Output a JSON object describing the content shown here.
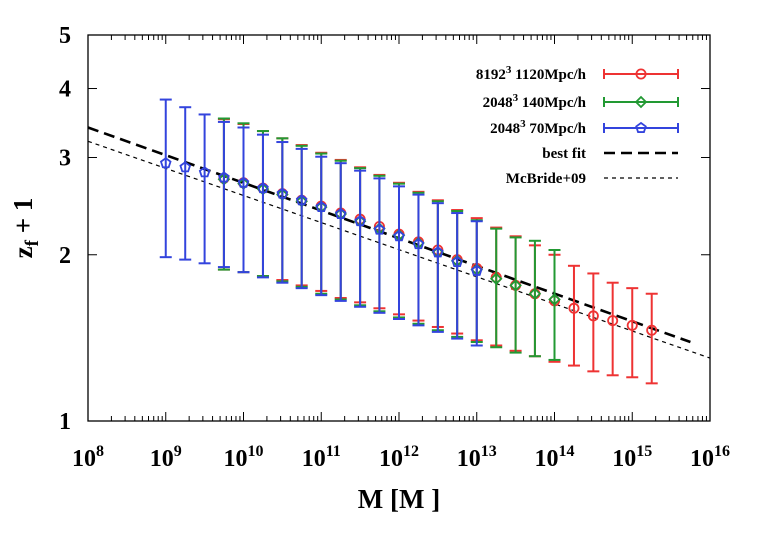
{
  "chart_data": {
    "type": "scatter",
    "xlabel": "M [M ]",
    "ylabel": "z",
    "ylabel_sub": "f",
    "ylabel_suffix": " + 1",
    "x_scale": "log",
    "y_scale": "log",
    "xlim": [
      100000000.0,
      1e+16
    ],
    "ylim": [
      1,
      5
    ],
    "grid": false,
    "legend_position": "top-right",
    "x_ticks": [
      {
        "value": 100000000.0,
        "base": "10",
        "exp": "8"
      },
      {
        "value": 1000000000.0,
        "base": "10",
        "exp": "9"
      },
      {
        "value": 10000000000.0,
        "base": "10",
        "exp": "10"
      },
      {
        "value": 100000000000.0,
        "base": "10",
        "exp": "11"
      },
      {
        "value": 1000000000000.0,
        "base": "10",
        "exp": "12"
      },
      {
        "value": 10000000000000.0,
        "base": "10",
        "exp": "13"
      },
      {
        "value": 100000000000000.0,
        "base": "10",
        "exp": "14"
      },
      {
        "value": 1000000000000000.0,
        "base": "10",
        "exp": "15"
      },
      {
        "value": 1e+16,
        "base": "10",
        "exp": "16"
      }
    ],
    "y_ticks": [
      {
        "value": 1,
        "label": "1"
      },
      {
        "value": 2,
        "label": "2"
      },
      {
        "value": 3,
        "label": "3"
      },
      {
        "value": 4,
        "label": "4"
      },
      {
        "value": 5,
        "label": "5"
      }
    ],
    "series": [
      {
        "name": "8192³ 1120Mpc/h",
        "label_base": "8192",
        "label_exp": "3",
        "label_rest": " 1120Mpc/h",
        "color": "#ee3333",
        "marker": "circle",
        "points": [
          {
            "x": 5600000000.0,
            "y": 2.75,
            "lo": 1.88,
            "hi": 3.52
          },
          {
            "x": 10000000000.0,
            "y": 2.7,
            "lo": 1.86,
            "hi": 3.45
          },
          {
            "x": 17800000000.0,
            "y": 2.64,
            "lo": 1.83,
            "hi": 3.35
          },
          {
            "x": 31600000000.0,
            "y": 2.58,
            "lo": 1.8,
            "hi": 3.25
          },
          {
            "x": 56000000000.0,
            "y": 2.51,
            "lo": 1.76,
            "hi": 3.16
          },
          {
            "x": 100000000000.0,
            "y": 2.45,
            "lo": 1.72,
            "hi": 3.06
          },
          {
            "x": 178000000000.0,
            "y": 2.38,
            "lo": 1.67,
            "hi": 2.97
          },
          {
            "x": 316000000000.0,
            "y": 2.32,
            "lo": 1.64,
            "hi": 2.88
          },
          {
            "x": 560000000000.0,
            "y": 2.25,
            "lo": 1.6,
            "hi": 2.79
          },
          {
            "x": 1000000000000.0,
            "y": 2.18,
            "lo": 1.56,
            "hi": 2.7
          },
          {
            "x": 1780000000000.0,
            "y": 2.11,
            "lo": 1.52,
            "hi": 2.6
          },
          {
            "x": 3160000000000.0,
            "y": 2.04,
            "lo": 1.48,
            "hi": 2.51
          },
          {
            "x": 5600000000000.0,
            "y": 1.96,
            "lo": 1.44,
            "hi": 2.41
          },
          {
            "x": 10000000000000.0,
            "y": 1.89,
            "lo": 1.4,
            "hi": 2.33
          },
          {
            "x": 17800000000000.0,
            "y": 1.82,
            "lo": 1.37,
            "hi": 2.24
          },
          {
            "x": 31600000000000.0,
            "y": 1.76,
            "lo": 1.34,
            "hi": 2.16
          },
          {
            "x": 56000000000000.0,
            "y": 1.7,
            "lo": 1.31,
            "hi": 2.08
          },
          {
            "x": 100000000000000.0,
            "y": 1.65,
            "lo": 1.28,
            "hi": 2.0
          },
          {
            "x": 178000000000000.0,
            "y": 1.6,
            "lo": 1.26,
            "hi": 1.91
          },
          {
            "x": 316000000000000.0,
            "y": 1.55,
            "lo": 1.23,
            "hi": 1.85
          },
          {
            "x": 560000000000000.0,
            "y": 1.52,
            "lo": 1.21,
            "hi": 1.78
          },
          {
            "x": 1000000000000000.0,
            "y": 1.49,
            "lo": 1.2,
            "hi": 1.74
          },
          {
            "x": 1780000000000000.0,
            "y": 1.46,
            "lo": 1.17,
            "hi": 1.7
          }
        ]
      },
      {
        "name": "2048³ 140Mpc/h",
        "label_base": "2048",
        "label_exp": "3",
        "label_rest": " 140Mpc/h",
        "color": "#229933",
        "marker": "diamond",
        "points": [
          {
            "x": 5600000000.0,
            "y": 2.74,
            "lo": 1.88,
            "hi": 3.53
          },
          {
            "x": 10000000000.0,
            "y": 2.69,
            "lo": 1.86,
            "hi": 3.46
          },
          {
            "x": 17800000000.0,
            "y": 2.63,
            "lo": 1.83,
            "hi": 3.35
          },
          {
            "x": 31600000000.0,
            "y": 2.57,
            "lo": 1.79,
            "hi": 3.25
          },
          {
            "x": 56000000000.0,
            "y": 2.5,
            "lo": 1.75,
            "hi": 3.15
          },
          {
            "x": 100000000000.0,
            "y": 2.44,
            "lo": 1.7,
            "hi": 3.05
          },
          {
            "x": 178000000000.0,
            "y": 2.37,
            "lo": 1.66,
            "hi": 2.96
          },
          {
            "x": 316000000000.0,
            "y": 2.3,
            "lo": 1.62,
            "hi": 2.87
          },
          {
            "x": 560000000000.0,
            "y": 2.23,
            "lo": 1.58,
            "hi": 2.78
          },
          {
            "x": 1000000000000.0,
            "y": 2.17,
            "lo": 1.54,
            "hi": 2.69
          },
          {
            "x": 1780000000000.0,
            "y": 2.1,
            "lo": 1.5,
            "hi": 2.59
          },
          {
            "x": 3160000000000.0,
            "y": 2.02,
            "lo": 1.46,
            "hi": 2.5
          },
          {
            "x": 5600000000000.0,
            "y": 1.95,
            "lo": 1.42,
            "hi": 2.4
          },
          {
            "x": 10000000000000.0,
            "y": 1.88,
            "lo": 1.39,
            "hi": 2.31
          },
          {
            "x": 17800000000000.0,
            "y": 1.81,
            "lo": 1.36,
            "hi": 2.23
          },
          {
            "x": 31600000000000.0,
            "y": 1.76,
            "lo": 1.33,
            "hi": 2.15
          },
          {
            "x": 56000000000000.0,
            "y": 1.7,
            "lo": 1.31,
            "hi": 2.12
          },
          {
            "x": 100000000000000.0,
            "y": 1.66,
            "lo": 1.29,
            "hi": 2.04
          }
        ]
      },
      {
        "name": "2048³ 70Mpc/h",
        "label_base": "2048",
        "label_exp": "3",
        "label_rest": " 70Mpc/h",
        "color": "#3344dd",
        "marker": "pentagon",
        "points": [
          {
            "x": 1000000000.0,
            "y": 2.93,
            "lo": 1.98,
            "hi": 3.82
          },
          {
            "x": 1780000000.0,
            "y": 2.88,
            "lo": 1.96,
            "hi": 3.7
          },
          {
            "x": 3160000000.0,
            "y": 2.82,
            "lo": 1.93,
            "hi": 3.59
          },
          {
            "x": 5600000000.0,
            "y": 2.76,
            "lo": 1.9,
            "hi": 3.48
          },
          {
            "x": 10000000000.0,
            "y": 2.7,
            "lo": 1.86,
            "hi": 3.4
          },
          {
            "x": 17800000000.0,
            "y": 2.64,
            "lo": 1.82,
            "hi": 3.3
          },
          {
            "x": 31600000000.0,
            "y": 2.58,
            "lo": 1.78,
            "hi": 3.2
          },
          {
            "x": 56000000000.0,
            "y": 2.51,
            "lo": 1.74,
            "hi": 3.11
          },
          {
            "x": 100000000000.0,
            "y": 2.44,
            "lo": 1.69,
            "hi": 3.01
          },
          {
            "x": 178000000000.0,
            "y": 2.37,
            "lo": 1.65,
            "hi": 2.93
          },
          {
            "x": 316000000000.0,
            "y": 2.3,
            "lo": 1.61,
            "hi": 2.84
          },
          {
            "x": 560000000000.0,
            "y": 2.22,
            "lo": 1.57,
            "hi": 2.75
          },
          {
            "x": 1000000000000.0,
            "y": 2.16,
            "lo": 1.53,
            "hi": 2.66
          },
          {
            "x": 1780000000000.0,
            "y": 2.09,
            "lo": 1.49,
            "hi": 2.57
          },
          {
            "x": 3160000000000.0,
            "y": 2.02,
            "lo": 1.45,
            "hi": 2.48
          },
          {
            "x": 5600000000000.0,
            "y": 1.94,
            "lo": 1.41,
            "hi": 2.38
          },
          {
            "x": 10000000000000.0,
            "y": 1.87,
            "lo": 1.37,
            "hi": 2.3
          }
        ]
      }
    ],
    "lines": [
      {
        "name": "best fit",
        "color": "#000000",
        "dash": "long",
        "x_start": 100000000.0,
        "y_start": 3.4,
        "x_end": 5600000000000000.0,
        "y_end": 1.39
      },
      {
        "name": "McBride+09",
        "color": "#000000",
        "dash": "short",
        "x_start": 100000000.0,
        "y_start": 3.21,
        "x_end": 1e+16,
        "y_end": 1.3
      }
    ]
  }
}
